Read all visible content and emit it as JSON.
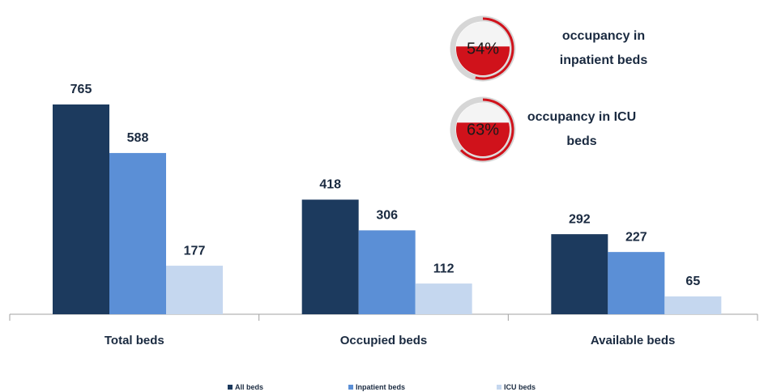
{
  "chart_data": {
    "type": "bar",
    "categories": [
      "Total beds",
      "Occupied beds",
      "Available beds"
    ],
    "series": [
      {
        "name": "All beds",
        "color": "#1c3a5e",
        "values": [
          765,
          418,
          292
        ]
      },
      {
        "name": "Inpatient beds",
        "color": "#5b8fd6",
        "values": [
          588,
          306,
          227
        ]
      },
      {
        "name": "ICU beds",
        "color": "#c5d7ef",
        "values": [
          177,
          112,
          65
        ]
      }
    ],
    "legend": "bottom",
    "gauges": [
      {
        "label": [
          "occupancy in",
          "inpatient beds"
        ],
        "value": 54,
        "value_label": "54%",
        "color": "#d0121b"
      },
      {
        "label": [
          "occupancy in ICU",
          "beds"
        ],
        "value": 63,
        "value_label": "63%",
        "color": "#d0121b"
      }
    ]
  }
}
